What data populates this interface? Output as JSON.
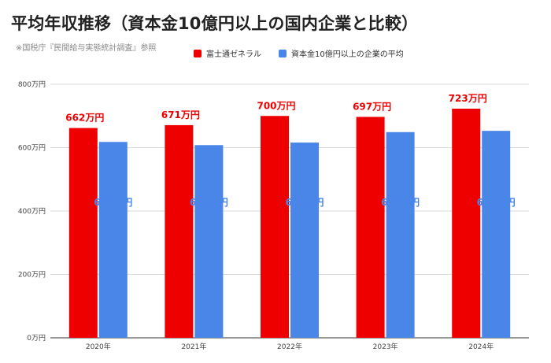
{
  "header": {
    "title": "平均年収推移（資本金10億円以上の国内企業と比較）",
    "source": "※国税庁『民間給与実態統計調査』参照"
  },
  "colors": {
    "series1": "#ee0000",
    "series2": "#4a86e8",
    "grid": "#d9d9d9",
    "axis": "#333333"
  },
  "chart_data": {
    "type": "bar",
    "categories": [
      "2020年",
      "2021年",
      "2022年",
      "2023年",
      "2024年"
    ],
    "series": [
      {
        "name": "富士通ゼネラル",
        "values": [
          662,
          671,
          700,
          697,
          723
        ],
        "labels": [
          "662万円",
          "671万円",
          "700万円",
          "697万円",
          "723万円"
        ]
      },
      {
        "name": "資本金10億円以上の企業の平均",
        "values": [
          618,
          608,
          616,
          649,
          653
        ],
        "labels": [
          "618万円",
          "608万円",
          "616万円",
          "649万円",
          "653万円"
        ]
      }
    ],
    "ylim": [
      0,
      800
    ],
    "yticks": [
      0,
      200,
      400,
      600,
      800
    ],
    "ytick_labels": [
      "0万円",
      "200万円",
      "400万円",
      "600万円",
      "800万円"
    ],
    "grid": true,
    "legend": "top"
  }
}
